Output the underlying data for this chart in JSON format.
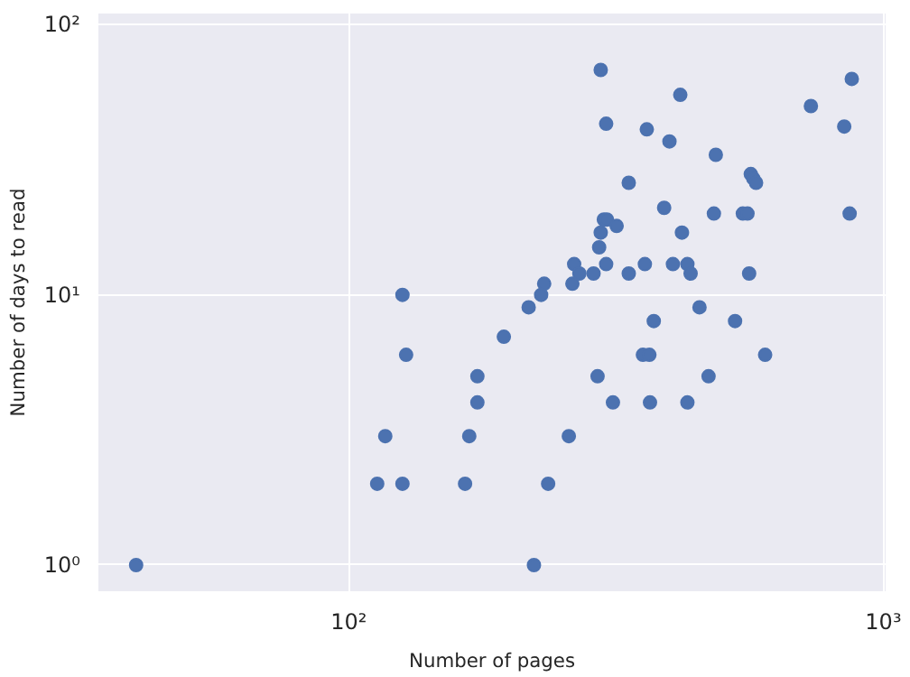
{
  "chart_data": {
    "type": "scatter",
    "xlabel": "Number of pages",
    "ylabel": "Number of days to read",
    "log": "xy",
    "grid": true,
    "marker": "circle",
    "xlim": [
      34,
      1010
    ],
    "ylim": [
      0.8,
      110
    ],
    "xticks": [
      {
        "value": 100,
        "label": "10²"
      },
      {
        "value": 1000,
        "label": "10³"
      }
    ],
    "yticks": [
      {
        "value": 1,
        "label": "10⁰"
      },
      {
        "value": 10,
        "label": "10¹"
      },
      {
        "value": 100,
        "label": "10²"
      }
    ],
    "series": [
      {
        "color": "#4c72b0",
        "x": [
          40,
          126,
          128,
          174,
          174,
          117,
          168,
          113,
          126,
          165,
          296,
          417,
          303,
          361,
          398,
          486,
          732,
          873,
          845,
          565,
          571,
          578,
          334,
          389,
          482,
          546,
          557,
          865,
          300,
          304,
          317,
          296,
          420,
          294,
          264,
          303,
          358,
          404,
          430,
          270,
          287,
          334,
          436,
          561,
          232,
          262,
          229,
          217,
          453,
          195,
          372,
          528,
          355,
          365,
          601,
          292,
          471,
          312,
          366,
          430,
          258,
          236,
          222
        ],
        "values": [
          1,
          10,
          6,
          5,
          4,
          3,
          3,
          2,
          2,
          2,
          68,
          55,
          43,
          41,
          37,
          33,
          50,
          63,
          42,
          28,
          27,
          26,
          26,
          21,
          20,
          20,
          20,
          20,
          19,
          19,
          18,
          17,
          17,
          15,
          13,
          13,
          13,
          13,
          13,
          12,
          12,
          12,
          12,
          12,
          11,
          11,
          10,
          9,
          9,
          7,
          8,
          8,
          6,
          6,
          6,
          5,
          5,
          4,
          4,
          4,
          3,
          2,
          1
        ]
      }
    ]
  }
}
